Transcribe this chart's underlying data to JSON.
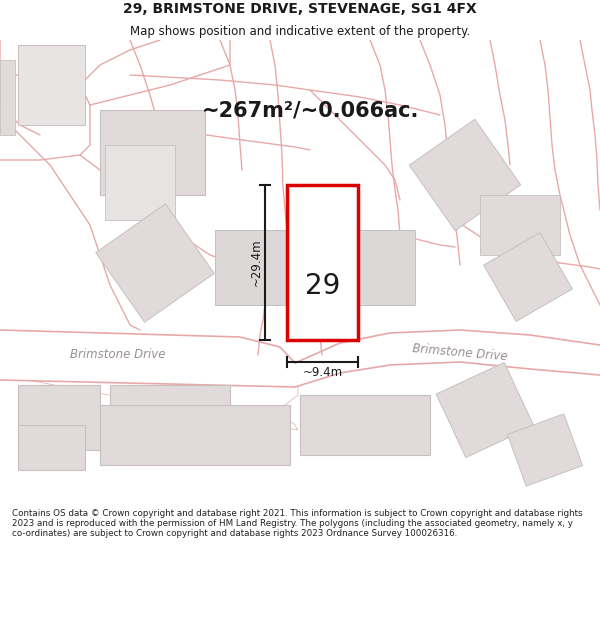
{
  "title_line1": "29, BRIMSTONE DRIVE, STEVENAGE, SG1 4FX",
  "title_line2": "Map shows position and indicative extent of the property.",
  "area_text": "~267m²/~0.066ac.",
  "label_29": "29",
  "width_label": "~9.4m",
  "height_label": "~29.4m",
  "footer_text": "Contains OS data © Crown copyright and database right 2021. This information is subject to Crown copyright and database rights 2023 and is reproduced with the permission of HM Land Registry. The polygons (including the associated geometry, namely x, y co-ordinates) are subject to Crown copyright and database rights 2023 Ordnance Survey 100026316.",
  "map_bg": "#f9f6f6",
  "road_line_color": "#e8a8a8",
  "road_fill": "#ffffff",
  "building_fill": "#e0dada",
  "building_edge": "#c8c0c0",
  "plot_fill": "white",
  "plot_edge": "#dd0000",
  "dim_line_color": "#1a1a1a",
  "road_label_color": "#9a9090",
  "road_label_size": 8.5,
  "area_text_color": "#1a1a1a",
  "title_color": "#1a1a1a"
}
